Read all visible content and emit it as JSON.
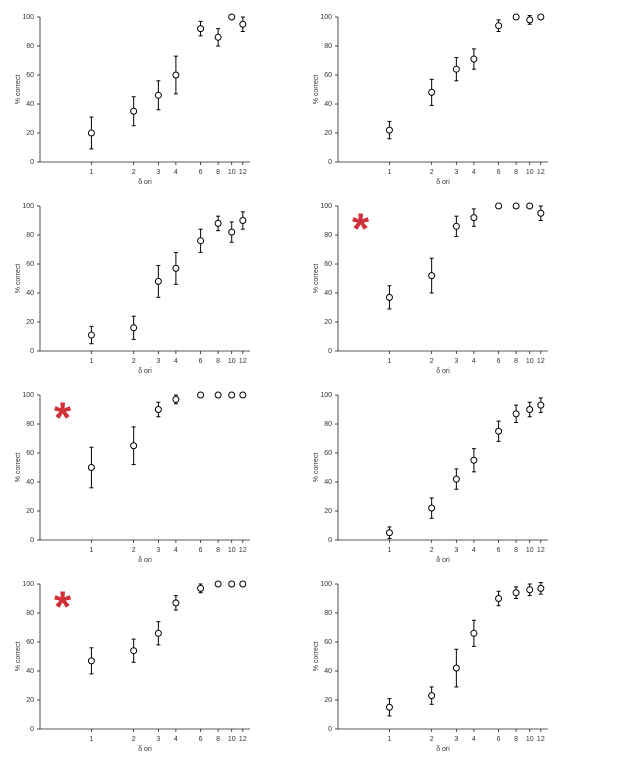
{
  "chart_data": [
    {
      "type": "scatter",
      "xlabel": "δ ori",
      "ylabel": "% correct",
      "log_x": true,
      "color": "#000000",
      "x": [
        1,
        2,
        3,
        4,
        6,
        8,
        10,
        12
      ],
      "values": [
        20,
        35,
        46,
        60,
        92,
        86,
        100,
        95
      ],
      "errors": [
        11,
        10,
        10,
        13,
        5,
        6,
        0,
        5
      ],
      "xlim": [
        0.43,
        13.5
      ],
      "xticks": [
        1,
        2,
        3,
        4,
        6,
        8,
        10,
        12
      ],
      "ylim": [
        0,
        100
      ],
      "yticks": [
        0,
        20,
        40,
        60,
        80,
        100
      ]
    },
    {
      "type": "scatter",
      "xlabel": "δ ori",
      "ylabel": "% correct",
      "log_x": true,
      "color": "#000000",
      "x": [
        1,
        2,
        3,
        4,
        6,
        8,
        10,
        12
      ],
      "values": [
        22,
        48,
        64,
        71,
        94,
        100,
        98,
        100
      ],
      "errors": [
        6,
        9,
        8,
        7,
        4,
        0,
        3,
        0
      ],
      "xlim": [
        0.43,
        13.5
      ],
      "xticks": [
        1,
        2,
        3,
        4,
        6,
        8,
        10,
        12
      ],
      "ylim": [
        0,
        100
      ],
      "yticks": [
        0,
        20,
        40,
        60,
        80,
        100
      ]
    },
    {
      "type": "scatter",
      "xlabel": "δ ori",
      "ylabel": "% correct",
      "log_x": true,
      "color": "#000000",
      "x": [
        1,
        2,
        3,
        4,
        6,
        8,
        10,
        12
      ],
      "values": [
        11,
        16,
        48,
        57,
        76,
        88,
        82,
        90
      ],
      "errors": [
        6,
        8,
        11,
        11,
        8,
        5,
        7,
        6
      ],
      "xlim": [
        0.43,
        13.5
      ],
      "xticks": [
        1,
        2,
        3,
        4,
        6,
        8,
        10,
        12
      ],
      "ylim": [
        0,
        100
      ],
      "yticks": [
        0,
        20,
        40,
        60,
        80,
        100
      ]
    },
    {
      "type": "scatter",
      "xlabel": "δ ori",
      "ylabel": "% correct",
      "log_x": true,
      "color": "#000000",
      "annotation": "*",
      "annotation_color": "#d0303a",
      "x": [
        1,
        2,
        3,
        4,
        6,
        8,
        10,
        12
      ],
      "values": [
        37,
        52,
        86,
        92,
        100,
        100,
        100,
        95
      ],
      "errors": [
        8,
        12,
        7,
        6,
        0,
        0,
        0,
        5
      ],
      "xlim": [
        0.43,
        13.5
      ],
      "xticks": [
        1,
        2,
        3,
        4,
        6,
        8,
        10,
        12
      ],
      "ylim": [
        0,
        100
      ],
      "yticks": [
        0,
        20,
        40,
        60,
        80,
        100
      ]
    },
    {
      "type": "scatter",
      "xlabel": "δ ori",
      "ylabel": "% correct",
      "log_x": true,
      "color": "#000000",
      "annotation": "*",
      "annotation_color": "#d0303a",
      "x": [
        1,
        2,
        3,
        4,
        6,
        8,
        10,
        12
      ],
      "values": [
        50,
        65,
        90,
        97,
        100,
        100,
        100,
        100
      ],
      "errors": [
        14,
        13,
        5,
        3,
        0,
        0,
        0,
        0
      ],
      "xlim": [
        0.43,
        13.5
      ],
      "xticks": [
        1,
        2,
        3,
        4,
        6,
        8,
        10,
        12
      ],
      "ylim": [
        0,
        100
      ],
      "yticks": [
        0,
        20,
        40,
        60,
        80,
        100
      ]
    },
    {
      "type": "scatter",
      "xlabel": "δ ori",
      "ylabel": "% correct",
      "log_x": true,
      "color": "#000000",
      "x": [
        1,
        2,
        3,
        4,
        6,
        8,
        10,
        12
      ],
      "values": [
        5,
        22,
        42,
        55,
        75,
        87,
        90,
        93
      ],
      "errors": [
        4,
        7,
        7,
        8,
        7,
        6,
        5,
        5
      ],
      "xlim": [
        0.43,
        13.5
      ],
      "xticks": [
        1,
        2,
        3,
        4,
        6,
        8,
        10,
        12
      ],
      "ylim": [
        0,
        100
      ],
      "yticks": [
        0,
        20,
        40,
        60,
        80,
        100
      ]
    },
    {
      "type": "scatter",
      "xlabel": "δ ori",
      "ylabel": "% correct",
      "log_x": true,
      "color": "#000000",
      "annotation": "*",
      "annotation_color": "#d0303a",
      "x": [
        1,
        2,
        3,
        4,
        6,
        8,
        10,
        12
      ],
      "values": [
        47,
        54,
        66,
        87,
        97,
        100,
        100,
        100
      ],
      "errors": [
        9,
        8,
        8,
        5,
        3,
        0,
        0,
        0
      ],
      "xlim": [
        0.43,
        13.5
      ],
      "xticks": [
        1,
        2,
        3,
        4,
        6,
        8,
        10,
        12
      ],
      "ylim": [
        0,
        100
      ],
      "yticks": [
        0,
        20,
        40,
        60,
        80,
        100
      ]
    },
    {
      "type": "scatter",
      "xlabel": "δ ori",
      "ylabel": "% correct",
      "log_x": true,
      "color": "#000000",
      "x": [
        1,
        2,
        3,
        4,
        6,
        8,
        10,
        12
      ],
      "values": [
        15,
        23,
        42,
        66,
        90,
        94,
        96,
        97
      ],
      "errors": [
        6,
        6,
        13,
        9,
        5,
        4,
        4,
        4
      ],
      "xlim": [
        0.43,
        13.5
      ],
      "xticks": [
        1,
        2,
        3,
        4,
        6,
        8,
        10,
        12
      ],
      "ylim": [
        0,
        100
      ],
      "yticks": [
        0,
        20,
        40,
        60,
        80,
        100
      ]
    }
  ]
}
